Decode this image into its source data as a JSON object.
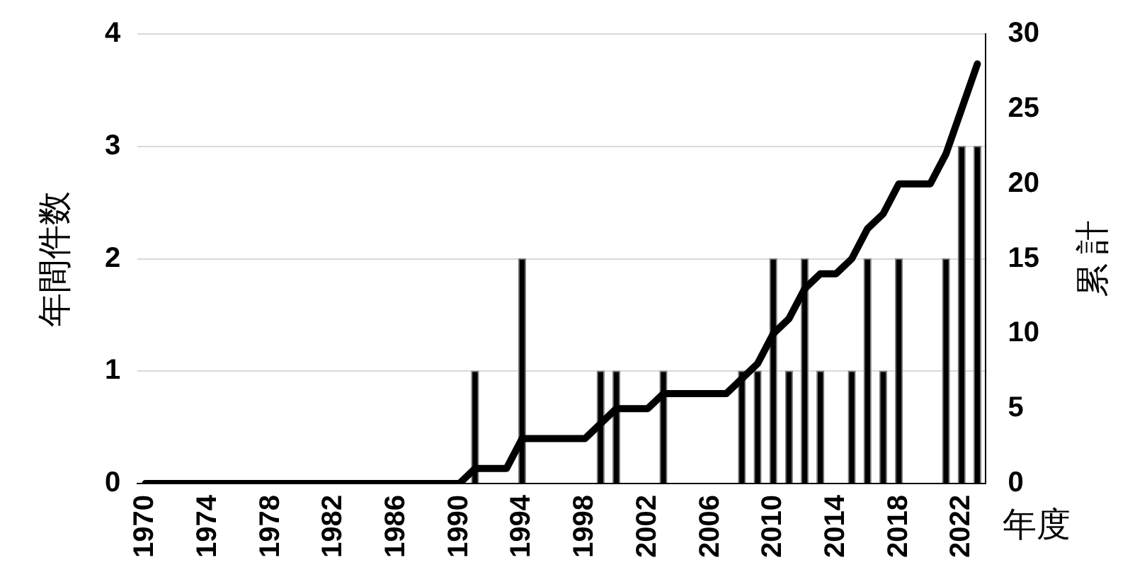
{
  "chart_data": {
    "type": "bar",
    "xlabel": "年度",
    "ylabel": "年間件数",
    "y2label": "累 計",
    "categories": [
      "1970",
      null,
      null,
      null,
      "1974",
      null,
      null,
      null,
      "1978",
      null,
      null,
      null,
      "1982",
      null,
      null,
      null,
      "1986",
      null,
      null,
      null,
      "1990",
      null,
      null,
      null,
      "1994",
      null,
      null,
      null,
      "1998",
      null,
      null,
      null,
      "2002",
      null,
      null,
      null,
      "2006",
      null,
      null,
      null,
      "2010",
      null,
      null,
      null,
      "2014",
      null,
      null,
      null,
      "2018",
      null,
      null,
      null,
      "2022",
      null
    ],
    "series": [
      {
        "color": "#000000",
        "values": [
          0,
          0,
          0,
          0,
          0,
          0,
          0,
          0,
          0,
          0,
          0,
          0,
          0,
          0,
          0,
          0,
          0,
          0,
          0,
          0,
          0,
          1,
          0,
          0,
          2,
          0,
          0,
          0,
          0,
          1,
          1,
          0,
          0,
          1,
          0,
          0,
          0,
          0,
          1,
          1,
          2,
          1,
          2,
          1,
          0,
          1,
          2,
          1,
          2,
          0,
          0,
          2,
          3,
          3
        ]
      },
      {
        "type": "line",
        "axis": "y2",
        "color": "#000000",
        "values": [
          0,
          0,
          0,
          0,
          0,
          0,
          0,
          0,
          0,
          0,
          0,
          0,
          0,
          0,
          0,
          0,
          0,
          0,
          0,
          0,
          0,
          1,
          1,
          1,
          3,
          3,
          3,
          3,
          3,
          4,
          5,
          5,
          5,
          6,
          6,
          6,
          6,
          6,
          7,
          8,
          10,
          11,
          13,
          14,
          14,
          15,
          17,
          18,
          20,
          20,
          20,
          22,
          25,
          28
        ]
      }
    ],
    "ylim": [
      0,
      4
    ],
    "yticks": [
      0,
      1,
      2,
      3,
      4
    ],
    "y2lim": [
      0,
      30
    ],
    "y2ticks": [
      0,
      5,
      10,
      15,
      20,
      25,
      30
    ],
    "grid": "y",
    "legend": false,
    "marker": "none",
    "line_style": "solid"
  }
}
